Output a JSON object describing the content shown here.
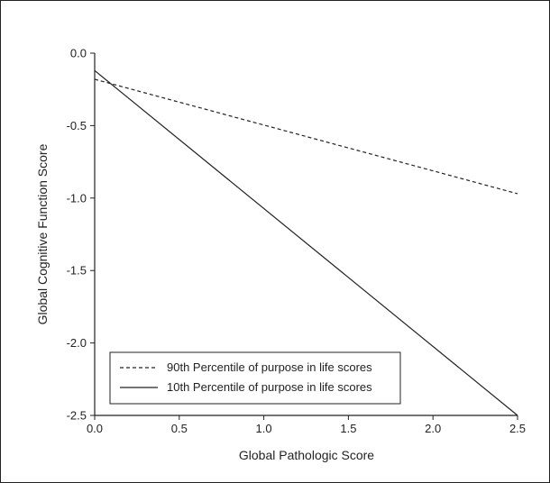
{
  "chart_data": {
    "type": "line",
    "xlabel": "Global Pathologic Score",
    "ylabel": "Global Cognitive Function Score",
    "xlim": [
      0.0,
      2.5
    ],
    "ylim": [
      -2.5,
      0.0
    ],
    "x_ticks": [
      "0.0",
      "0.5",
      "1.0",
      "1.5",
      "2.0",
      "2.5"
    ],
    "y_ticks": [
      "0.0",
      "-0.5",
      "-1.0",
      "-1.5",
      "-2.0",
      "-2.5"
    ],
    "grid": false,
    "legend_position": "bottom-left",
    "series": [
      {
        "name": "90th Percentile of purpose in life scores",
        "style": "dashed",
        "x": [
          0.0,
          2.5
        ],
        "y": [
          -0.18,
          -0.97
        ]
      },
      {
        "name": "10th Percentile of purpose in life scores",
        "style": "solid",
        "x": [
          0.0,
          2.5
        ],
        "y": [
          -0.12,
          -2.5
        ]
      }
    ]
  },
  "colors": {
    "line": "#222222",
    "background": "#ffffff"
  }
}
